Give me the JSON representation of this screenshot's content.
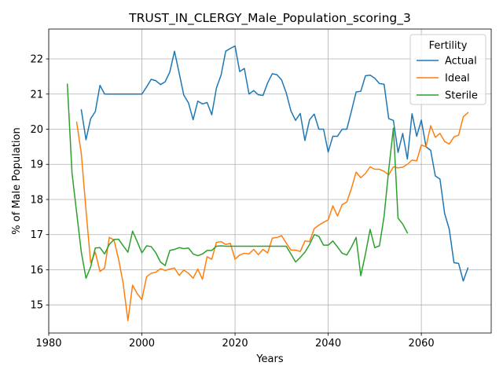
{
  "chart_data": {
    "type": "line",
    "title": "TRUST_IN_CLERGY_Male_Population_scoring_3",
    "xlabel": "Years",
    "ylabel": "% of Male Population",
    "xlim": [
      1980,
      2075
    ],
    "ylim": [
      14.2,
      22.85
    ],
    "xticks": [
      1980,
      2000,
      2020,
      2040,
      2060
    ],
    "yticks": [
      15,
      16,
      17,
      18,
      19,
      20,
      21,
      22
    ],
    "grid": true,
    "legend": {
      "title": "Fertility",
      "placement": "top-right"
    },
    "series": [
      {
        "name": "Actual",
        "color": "#1f77b4",
        "x": [
          1987,
          1988,
          1989,
          1990,
          1991,
          1992,
          1993,
          1994,
          1995,
          1996,
          1997,
          1998,
          1999,
          2000,
          2001,
          2002,
          2003,
          2004,
          2005,
          2006,
          2007,
          2008,
          2009,
          2010,
          2011,
          2012,
          2013,
          2014,
          2015,
          2016,
          2017,
          2018,
          2019,
          2020,
          2021,
          2022,
          2023,
          2024,
          2025,
          2026,
          2027,
          2028,
          2029,
          2030,
          2031,
          2032,
          2033,
          2034,
          2035,
          2036,
          2037,
          2038,
          2039,
          2040,
          2041,
          2042,
          2043,
          2044,
          2045,
          2046,
          2047,
          2048,
          2049,
          2050,
          2051,
          2052,
          2053,
          2054,
          2055,
          2056,
          2057,
          2058,
          2059,
          2060,
          2061,
          2062,
          2063,
          2064,
          2065,
          2066,
          2067,
          2068,
          2069,
          2070
        ],
        "values": [
          20.55,
          19.7,
          20.3,
          20.5,
          21.25,
          21.0,
          21.0,
          21.0,
          21.0,
          21.0,
          21.0,
          21.0,
          21.0,
          21.0,
          21.2,
          21.42,
          21.38,
          21.27,
          21.35,
          21.63,
          22.22,
          21.6,
          20.97,
          20.75,
          20.27,
          20.8,
          20.72,
          20.76,
          20.41,
          21.17,
          21.54,
          22.22,
          22.3,
          22.37,
          21.64,
          21.73,
          21.0,
          21.1,
          20.98,
          20.96,
          21.32,
          21.58,
          21.55,
          21.4,
          21.03,
          20.52,
          20.25,
          20.45,
          19.68,
          20.27,
          20.43,
          20.0,
          20.0,
          19.35,
          19.8,
          19.8,
          20.0,
          20.0,
          20.52,
          21.06,
          21.08,
          21.52,
          21.54,
          21.45,
          21.3,
          21.28,
          20.3,
          20.25,
          19.34,
          19.88,
          19.15,
          20.44,
          19.8,
          20.26,
          19.5,
          19.4,
          18.67,
          18.58,
          17.6,
          17.15,
          16.2,
          16.18,
          15.68,
          16.05
        ]
      },
      {
        "name": "Ideal",
        "color": "#ff7f0e",
        "x": [
          1986,
          1987,
          1988,
          1989,
          1990,
          1991,
          1992,
          1993,
          1994,
          1995,
          1996,
          1997,
          1998,
          1999,
          2000,
          2001,
          2002,
          2003,
          2004,
          2005,
          2006,
          2007,
          2008,
          2009,
          2010,
          2011,
          2012,
          2013,
          2014,
          2015,
          2016,
          2017,
          2018,
          2019,
          2020,
          2021,
          2022,
          2023,
          2024,
          2025,
          2026,
          2027,
          2028,
          2029,
          2030,
          2031,
          2032,
          2033,
          2034,
          2035,
          2036,
          2037,
          2038,
          2039,
          2040,
          2041,
          2042,
          2043,
          2044,
          2045,
          2046,
          2047,
          2048,
          2049,
          2050,
          2051,
          2052,
          2053,
          2054,
          2055,
          2056,
          2057,
          2058,
          2059,
          2060,
          2061,
          2062,
          2063,
          2064,
          2065,
          2066,
          2067,
          2068,
          2069,
          2070
        ],
        "values": [
          20.2,
          19.3,
          17.7,
          16.2,
          16.5,
          15.95,
          16.05,
          16.92,
          16.85,
          16.3,
          15.6,
          14.55,
          15.56,
          15.32,
          15.15,
          15.8,
          15.9,
          15.93,
          16.03,
          15.98,
          16.02,
          16.05,
          15.84,
          15.99,
          15.9,
          15.76,
          16.02,
          15.73,
          16.37,
          16.3,
          16.78,
          16.8,
          16.72,
          16.75,
          16.3,
          16.42,
          16.47,
          16.45,
          16.58,
          16.43,
          16.58,
          16.48,
          16.9,
          16.92,
          16.97,
          16.76,
          16.56,
          16.56,
          16.52,
          16.82,
          16.8,
          17.17,
          17.27,
          17.35,
          17.42,
          17.82,
          17.53,
          17.85,
          17.93,
          18.32,
          18.78,
          18.62,
          18.74,
          18.93,
          18.86,
          18.86,
          18.8,
          18.7,
          18.93,
          18.9,
          18.92,
          19.0,
          19.12,
          19.1,
          19.55,
          19.5,
          20.1,
          19.77,
          19.88,
          19.65,
          19.58,
          19.78,
          19.83,
          20.35,
          20.47
        ]
      },
      {
        "name": "Sterile",
        "color": "#2ca02c",
        "x": [
          1984,
          1985,
          1986,
          1987,
          1988,
          1989,
          1990,
          1991,
          1992,
          1993,
          1994,
          1995,
          1996,
          1997,
          1998,
          1999,
          2000,
          2001,
          2002,
          2003,
          2004,
          2005,
          2006,
          2007,
          2008,
          2009,
          2010,
          2011,
          2012,
          2013,
          2014,
          2015,
          2016,
          2017,
          2018,
          2019,
          2020,
          2021,
          2022,
          2023,
          2024,
          2025,
          2026,
          2027,
          2028,
          2029,
          2030,
          2031,
          2032,
          2033,
          2034,
          2035,
          2036,
          2037,
          2038,
          2039,
          2040,
          2041,
          2042,
          2043,
          2044,
          2045,
          2046,
          2047,
          2048,
          2049,
          2050,
          2051,
          2052,
          2053,
          2054,
          2055,
          2056,
          2057
        ],
        "values": [
          21.28,
          18.75,
          17.62,
          16.5,
          15.76,
          16.08,
          16.62,
          16.63,
          16.45,
          16.72,
          16.86,
          16.87,
          16.68,
          16.5,
          17.1,
          16.8,
          16.48,
          16.68,
          16.66,
          16.48,
          16.22,
          16.12,
          16.55,
          16.58,
          16.63,
          16.6,
          16.62,
          16.45,
          16.4,
          16.45,
          16.55,
          16.55,
          16.67,
          16.68,
          16.67,
          16.67,
          16.67,
          16.67,
          16.67,
          16.67,
          16.67,
          16.67,
          16.67,
          16.67,
          16.67,
          16.67,
          16.67,
          16.67,
          16.45,
          16.22,
          16.35,
          16.5,
          16.72,
          17.0,
          16.95,
          16.7,
          16.7,
          16.82,
          16.65,
          16.47,
          16.42,
          16.65,
          16.92,
          15.83,
          16.45,
          17.15,
          16.63,
          16.68,
          17.52,
          18.85,
          20.03,
          17.47,
          17.3,
          17.05
        ]
      }
    ]
  }
}
